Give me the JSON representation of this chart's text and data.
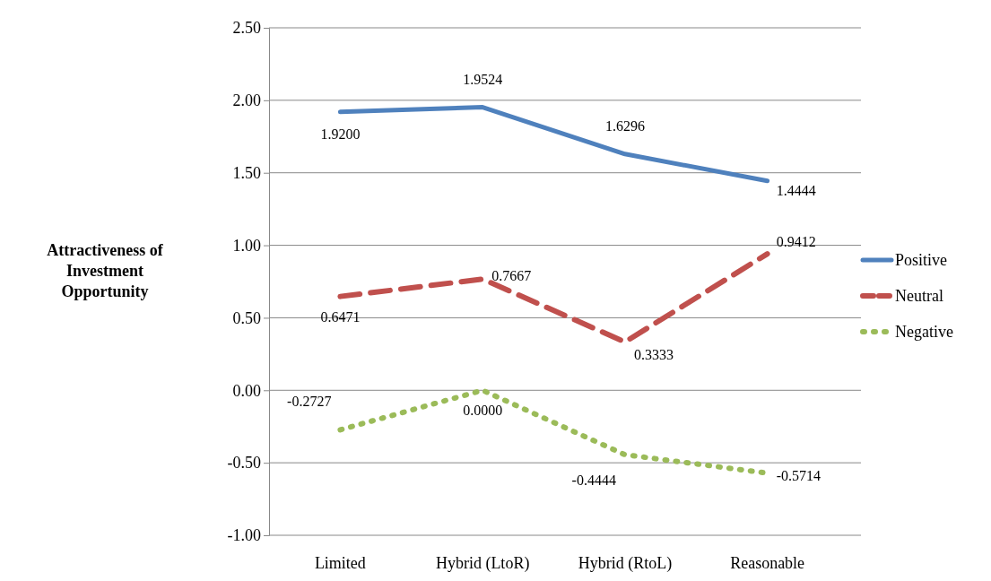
{
  "chart_data": {
    "type": "line",
    "ylabel": "Attractiveness of Investment Opportunity",
    "categories": [
      "Limited",
      "Hybrid (LtoR)",
      "Hybrid (RtoL)",
      "Reasonable"
    ],
    "ylim": [
      -1,
      2.5
    ],
    "yticks": [
      {
        "value": -1,
        "label": "-1.00"
      },
      {
        "value": -0.5,
        "label": "-0.50"
      },
      {
        "value": 0,
        "label": "0.00"
      },
      {
        "value": 0.5,
        "label": "0.50"
      },
      {
        "value": 1,
        "label": "1.00"
      },
      {
        "value": 1.5,
        "label": "1.50"
      },
      {
        "value": 2,
        "label": "2.00"
      },
      {
        "value": 2.5,
        "label": "2.50"
      }
    ],
    "grid": "y",
    "legend": "right",
    "marker": "none",
    "series": [
      {
        "name": "Positive",
        "color": "#4f81bd",
        "line_style": "solid",
        "values": [
          1.92,
          1.9524,
          1.6296,
          1.4444
        ],
        "value_labels": [
          "1.9200",
          "1.9524",
          "1.6296",
          "1.4444"
        ]
      },
      {
        "name": "Neutral",
        "color": "#c0504d",
        "line_style": "dashed",
        "values": [
          0.6471,
          0.7667,
          0.3333,
          0.9412
        ],
        "value_labels": [
          "0.6471",
          "0.7667",
          "0.3333",
          "0.9412"
        ]
      },
      {
        "name": "Negative",
        "color": "#9bbb59",
        "line_style": "dotted",
        "values": [
          -0.2727,
          0,
          -0.4444,
          -0.5714
        ],
        "value_labels": [
          "-0.2727",
          "0.0000",
          "-0.4444",
          "-0.5714"
        ]
      }
    ]
  }
}
